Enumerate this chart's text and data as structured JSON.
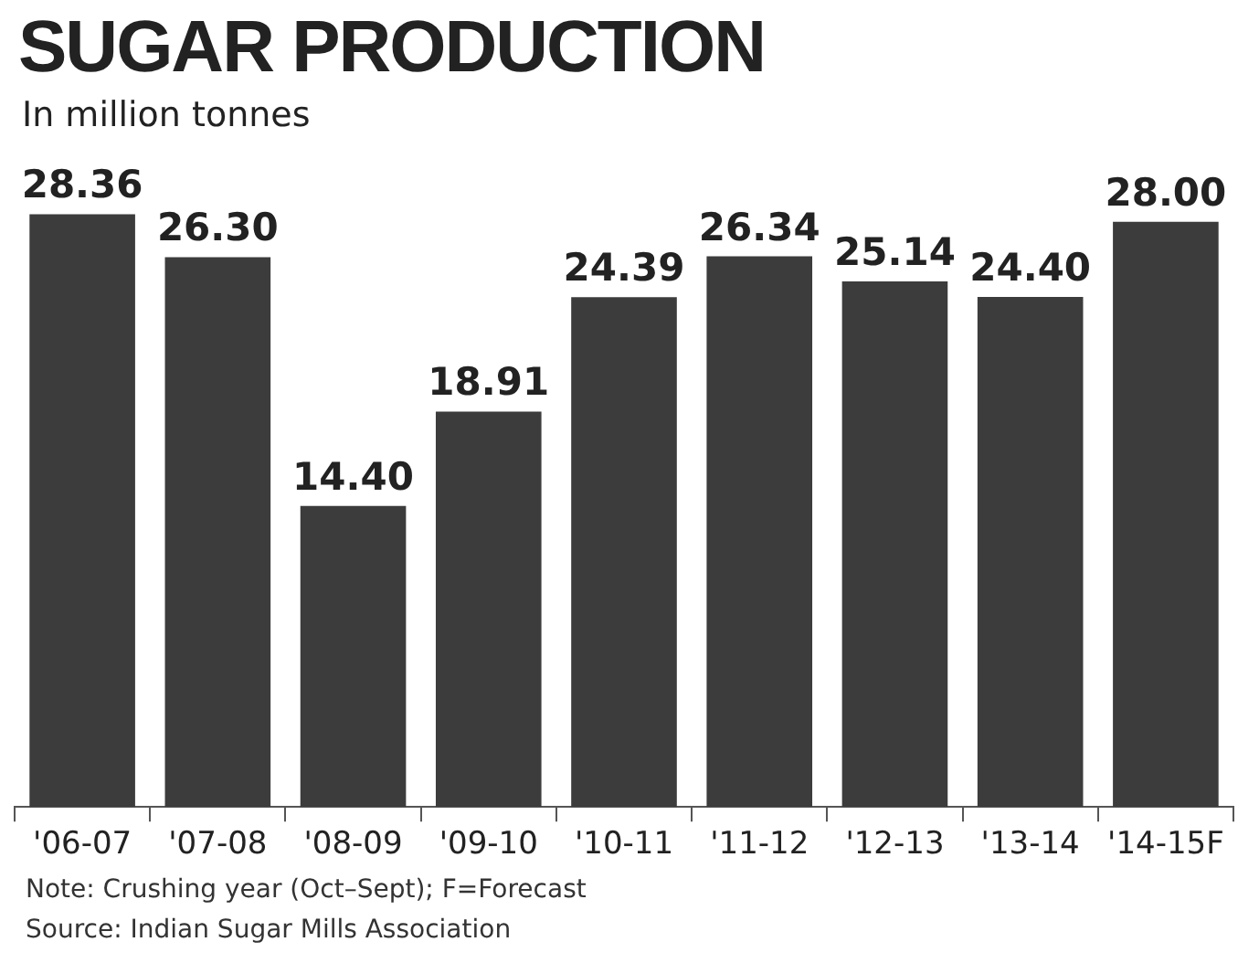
{
  "chart_data": {
    "type": "bar",
    "title": "SUGAR PRODUCTION",
    "subtitle": "In million tonnes",
    "categories": [
      "'06-07",
      "'07-08",
      "'08-09",
      "'09-10",
      "'10-11",
      "'11-12",
      "'12-13",
      "'13-14",
      "'14-15F"
    ],
    "values": [
      28.36,
      26.3,
      14.4,
      18.91,
      24.39,
      26.34,
      25.14,
      24.4,
      28.0
    ],
    "value_labels": [
      "28.36",
      "26.30",
      "14.40",
      "18.91",
      "24.39",
      "26.34",
      "25.14",
      "24.40",
      "28.00"
    ],
    "color": "#3c3c3c",
    "grid": false,
    "legend": false,
    "annotations": [
      "Note: Crushing year (Oct–Sept); F=Forecast",
      "Source: Indian Sugar Mills Association"
    ]
  }
}
